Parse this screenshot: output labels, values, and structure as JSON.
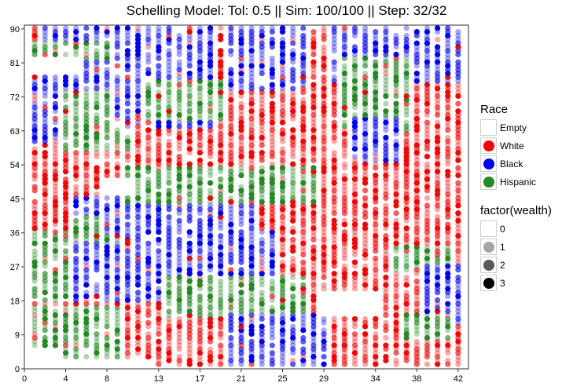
{
  "title": "Schelling Model: Tol: 0.5 || Sim: 100/100 || Step: 32/32",
  "chart_data": {
    "type": "scatter",
    "title": "Schelling Model: Tol: 0.5 || Sim: 100/100 || Step: 32/32",
    "xlim": [
      0,
      43
    ],
    "ylim": [
      0,
      91
    ],
    "x_ticks": [
      0,
      4,
      8,
      13,
      17,
      21,
      25,
      29,
      34,
      38,
      42
    ],
    "y_ticks": [
      0,
      9,
      18,
      27,
      36,
      45,
      54,
      63,
      72,
      81,
      90
    ],
    "grid": false,
    "legend_position": "right",
    "grid_cells": {
      "x_count": 42,
      "y_count": 90
    },
    "race_legend": {
      "title": "Race",
      "entries": [
        {
          "label": "Empty",
          "color": "#ffffff"
        },
        {
          "label": "White",
          "color": "#ff0000"
        },
        {
          "label": "Black",
          "color": "#0000ff"
        },
        {
          "label": "Hispanic",
          "color": "#228b22"
        }
      ]
    },
    "wealth_legend": {
      "title": "factor(wealth)",
      "entries": [
        {
          "label": "0",
          "alpha": 0.0
        },
        {
          "label": "1",
          "alpha": 0.35
        },
        {
          "label": "2",
          "alpha": 0.65
        },
        {
          "label": "3",
          "alpha": 1.0
        }
      ]
    },
    "regions": [
      {
        "race": "White",
        "x": [
          1,
          42
        ],
        "y": [
          1,
          90
        ]
      },
      {
        "race": "Hispanic",
        "x": [
          1,
          4
        ],
        "y": [
          18,
          36
        ]
      },
      {
        "race": "Hispanic",
        "x": [
          1,
          9
        ],
        "y": [
          3,
          16
        ]
      },
      {
        "race": "Black",
        "x": [
          1,
          4
        ],
        "y": [
          60,
          76
        ]
      },
      {
        "race": "Hispanic",
        "x": [
          4,
          10
        ],
        "y": [
          58,
          74
        ]
      },
      {
        "race": "Black",
        "x": [
          2,
          11
        ],
        "y": [
          74,
          90
        ]
      },
      {
        "race": "Black",
        "x": [
          9,
          18
        ],
        "y": [
          64,
          90
        ]
      },
      {
        "race": "Hispanic",
        "x": [
          12,
          19
        ],
        "y": [
          66,
          76
        ]
      },
      {
        "race": "Black",
        "x": [
          5,
          13
        ],
        "y": [
          18,
          45
        ]
      },
      {
        "race": "Hispanic",
        "x": [
          5,
          9
        ],
        "y": [
          34,
          40
        ]
      },
      {
        "race": "Black",
        "x": [
          8,
          22
        ],
        "y": [
          36,
          46
        ]
      },
      {
        "race": "Hispanic",
        "x": [
          10,
          28
        ],
        "y": [
          44,
          53
        ]
      },
      {
        "race": "Black",
        "x": [
          12,
          24
        ],
        "y": [
          24,
          36
        ]
      },
      {
        "race": "Hispanic",
        "x": [
          14,
          27
        ],
        "y": [
          14,
          24
        ]
      },
      {
        "race": "Black",
        "x": [
          20,
          29
        ],
        "y": [
          0,
          14
        ]
      },
      {
        "race": "Black",
        "x": [
          20,
          27
        ],
        "y": [
          74,
          90
        ]
      },
      {
        "race": "Black",
        "x": [
          30,
          42
        ],
        "y": [
          76,
          90
        ]
      },
      {
        "race": "Hispanic",
        "x": [
          31,
          37
        ],
        "y": [
          76,
          82
        ]
      },
      {
        "race": "Hispanic",
        "x": [
          31,
          37
        ],
        "y": [
          63,
          75
        ]
      },
      {
        "race": "Black",
        "x": [
          32,
          36
        ],
        "y": [
          55,
          66
        ]
      },
      {
        "race": "Hispanic",
        "x": [
          36,
          41
        ],
        "y": [
          26,
          32
        ]
      },
      {
        "race": "Black",
        "x": [
          39,
          42
        ],
        "y": [
          12,
          27
        ]
      },
      {
        "race": "Hispanic",
        "x": [
          37,
          41
        ],
        "y": [
          8,
          14
        ]
      },
      {
        "race": "Hispanic",
        "x": [
          1,
          8
        ],
        "y": [
          82,
          86
        ]
      }
    ],
    "empty_areas": [
      {
        "x": [
          1,
          3
        ],
        "y": [
          0,
          5
        ]
      },
      {
        "x": [
          3,
          12
        ],
        "y": [
          0,
          2
        ]
      },
      {
        "x": [
          29,
          34
        ],
        "y": [
          14,
          20
        ]
      },
      {
        "x": [
          1,
          5
        ],
        "y": [
          78,
          82
        ]
      },
      {
        "x": [
          8,
          10
        ],
        "y": [
          46,
          50
        ]
      }
    ]
  }
}
